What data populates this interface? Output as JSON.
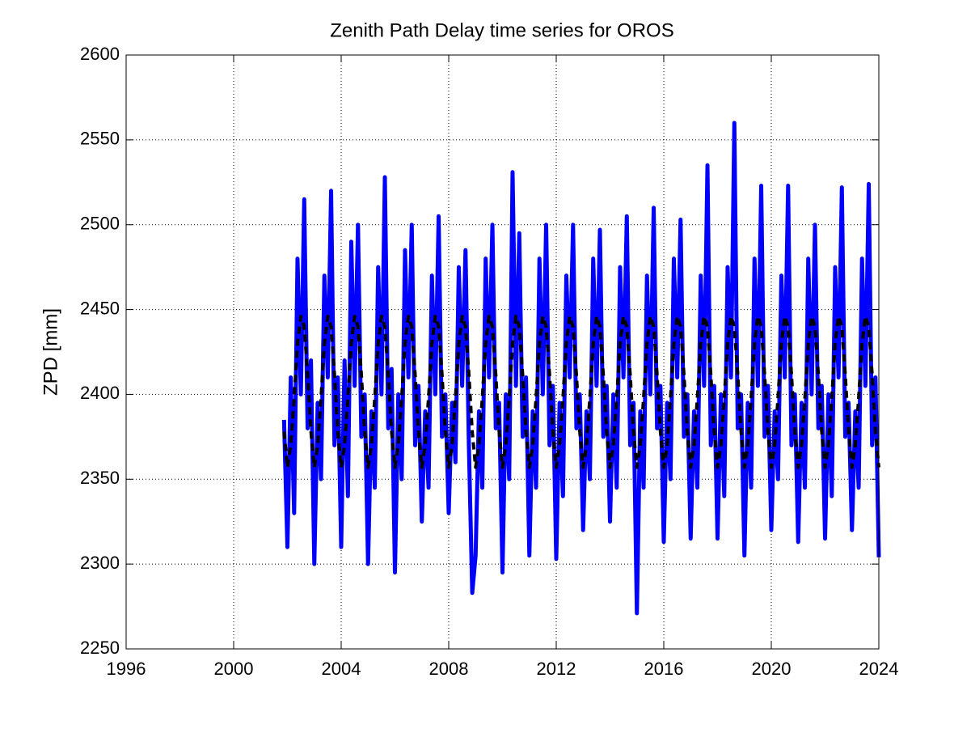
{
  "chart_data": {
    "type": "line",
    "title": "Zenith Path Delay time series for OROS",
    "y_label": "ZPD [mm]",
    "x": [
      2001.875,
      2002,
      2002.125,
      2002.25,
      2002.375,
      2002.5,
      2002.625,
      2002.75,
      2002.875,
      2003,
      2003.125,
      2003.25,
      2003.375,
      2003.5,
      2003.625,
      2003.75,
      2003.875,
      2004,
      2004.125,
      2004.25,
      2004.375,
      2004.5,
      2004.625,
      2004.75,
      2004.875,
      2005,
      2005.125,
      2005.25,
      2005.375,
      2005.5,
      2005.625,
      2005.75,
      2005.875,
      2006,
      2006.125,
      2006.25,
      2006.375,
      2006.5,
      2006.625,
      2006.75,
      2006.875,
      2007,
      2007.125,
      2007.25,
      2007.375,
      2007.5,
      2007.625,
      2007.75,
      2007.875,
      2008,
      2008.125,
      2008.25,
      2008.375,
      2008.5,
      2008.625,
      2008.75,
      2008.875,
      2009,
      2009.125,
      2009.25,
      2009.375,
      2009.5,
      2009.625,
      2009.75,
      2009.875,
      2010,
      2010.125,
      2010.25,
      2010.375,
      2010.5,
      2010.625,
      2010.75,
      2010.875,
      2011,
      2011.125,
      2011.25,
      2011.375,
      2011.5,
      2011.625,
      2011.75,
      2011.875,
      2012,
      2012.125,
      2012.25,
      2012.375,
      2012.5,
      2012.625,
      2012.75,
      2012.875,
      2013,
      2013.125,
      2013.25,
      2013.375,
      2013.5,
      2013.625,
      2013.75,
      2013.875,
      2014,
      2014.125,
      2014.25,
      2014.375,
      2014.5,
      2014.625,
      2014.75,
      2014.875,
      2015,
      2015.125,
      2015.25,
      2015.375,
      2015.5,
      2015.625,
      2015.75,
      2015.875,
      2016,
      2016.125,
      2016.25,
      2016.375,
      2016.5,
      2016.625,
      2016.75,
      2016.875,
      2017,
      2017.125,
      2017.25,
      2017.375,
      2017.5,
      2017.625,
      2017.75,
      2017.875,
      2018,
      2018.125,
      2018.25,
      2018.375,
      2018.5,
      2018.625,
      2018.75,
      2018.875,
      2019,
      2019.125,
      2019.25,
      2019.375,
      2019.5,
      2019.625,
      2019.75,
      2019.875,
      2020,
      2020.125,
      2020.25,
      2020.375,
      2020.5,
      2020.625,
      2020.75,
      2020.875,
      2021,
      2021.125,
      2021.25,
      2021.375,
      2021.5,
      2021.625,
      2021.75,
      2021.875,
      2022,
      2022.125,
      2022.25,
      2022.375,
      2022.5,
      2022.625,
      2022.75,
      2022.875,
      2023,
      2023.125,
      2023.25,
      2023.375,
      2023.5,
      2023.625,
      2023.75,
      2023.875,
      2024
    ],
    "series": [
      {
        "color": "#0000ff",
        "style": "solid",
        "values": [
          2385,
          2310,
          2410,
          2330,
          2480,
          2400,
          2515,
          2380,
          2420,
          2300,
          2395,
          2350,
          2470,
          2410,
          2520,
          2370,
          2410,
          2310,
          2420,
          2340,
          2490,
          2405,
          2500,
          2375,
          2400,
          2300,
          2390,
          2345,
          2475,
          2400,
          2528,
          2380,
          2415,
          2295,
          2400,
          2350,
          2485,
          2410,
          2500,
          2370,
          2405,
          2325,
          2390,
          2345,
          2470,
          2400,
          2505,
          2375,
          2400,
          2330,
          2395,
          2360,
          2475,
          2405,
          2485,
          2370,
          2283,
          2305,
          2390,
          2345,
          2480,
          2410,
          2500,
          2380,
          2395,
          2295,
          2400,
          2350,
          2531,
          2405,
          2495,
          2375,
          2410,
          2305,
          2390,
          2345,
          2480,
          2400,
          2500,
          2370,
          2405,
          2303,
          2395,
          2340,
          2470,
          2410,
          2500,
          2380,
          2400,
          2320,
          2390,
          2350,
          2480,
          2405,
          2497,
          2375,
          2405,
          2325,
          2400,
          2345,
          2475,
          2410,
          2505,
          2370,
          2395,
          2271,
          2390,
          2345,
          2470,
          2400,
          2510,
          2380,
          2405,
          2313,
          2395,
          2350,
          2480,
          2410,
          2503,
          2375,
          2400,
          2315,
          2390,
          2345,
          2470,
          2405,
          2535,
          2370,
          2405,
          2315,
          2400,
          2340,
          2475,
          2410,
          2560,
          2380,
          2400,
          2305,
          2395,
          2345,
          2480,
          2405,
          2523,
          2375,
          2405,
          2320,
          2390,
          2350,
          2470,
          2410,
          2523,
          2370,
          2400,
          2313,
          2395,
          2345,
          2480,
          2400,
          2500,
          2380,
          2405,
          2315,
          2400,
          2340,
          2475,
          2410,
          2522,
          2375,
          2395,
          2320,
          2390,
          2345,
          2480,
          2405,
          2524,
          2370,
          2410,
          2304
        ]
      },
      {
        "color": "#000000",
        "style": "dashed",
        "values": [
          2378,
          2357,
          2370,
          2398,
          2430,
          2446,
          2440,
          2412,
          2378,
          2357,
          2370,
          2398,
          2430,
          2446,
          2440,
          2412,
          2378,
          2357,
          2370,
          2398,
          2430,
          2446,
          2440,
          2412,
          2378,
          2357,
          2370,
          2398,
          2430,
          2446,
          2440,
          2412,
          2378,
          2357,
          2370,
          2398,
          2430,
          2446,
          2440,
          2412,
          2378,
          2357,
          2370,
          2398,
          2430,
          2446,
          2440,
          2412,
          2378,
          2357,
          2370,
          2398,
          2430,
          2446,
          2440,
          2412,
          2378,
          2357,
          2370,
          2398,
          2430,
          2446,
          2440,
          2412,
          2378,
          2357,
          2370,
          2398,
          2430,
          2446,
          2440,
          2412,
          2378,
          2357,
          2370,
          2398,
          2430,
          2446,
          2440,
          2412,
          2378,
          2357,
          2370,
          2398,
          2430,
          2446,
          2440,
          2412,
          2378,
          2357,
          2370,
          2398,
          2430,
          2446,
          2440,
          2412,
          2378,
          2357,
          2370,
          2398,
          2430,
          2446,
          2440,
          2412,
          2378,
          2357,
          2370,
          2398,
          2430,
          2446,
          2440,
          2412,
          2378,
          2357,
          2370,
          2398,
          2430,
          2446,
          2440,
          2412,
          2378,
          2357,
          2370,
          2398,
          2430,
          2446,
          2440,
          2412,
          2378,
          2357,
          2370,
          2398,
          2430,
          2446,
          2440,
          2412,
          2378,
          2357,
          2370,
          2398,
          2430,
          2446,
          2440,
          2412,
          2378,
          2357,
          2370,
          2398,
          2430,
          2446,
          2440,
          2412,
          2378,
          2357,
          2370,
          2398,
          2430,
          2446,
          2440,
          2412,
          2378,
          2357,
          2370,
          2398,
          2430,
          2446,
          2440,
          2412,
          2378,
          2357,
          2370,
          2398,
          2430,
          2446,
          2440,
          2412,
          2378,
          2357
        ]
      }
    ],
    "xlim": [
      1996,
      2024
    ],
    "xticks": [
      1996,
      2000,
      2004,
      2008,
      2012,
      2016,
      2020,
      2024
    ],
    "ylim": [
      2250,
      2600
    ],
    "yticks": [
      2250,
      2300,
      2350,
      2400,
      2450,
      2500,
      2550,
      2600
    ],
    "grid": true
  }
}
